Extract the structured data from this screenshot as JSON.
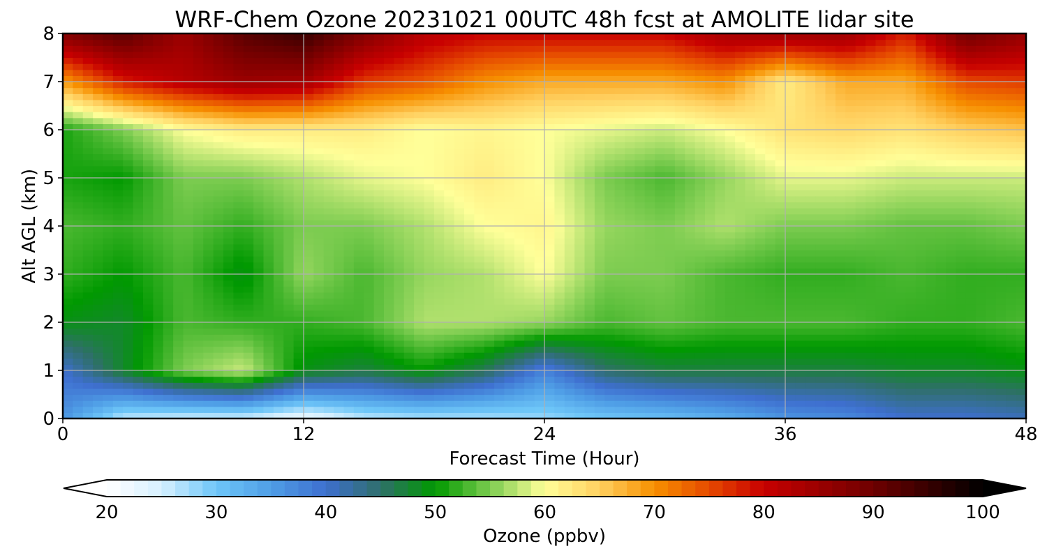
{
  "chart_data": {
    "type": "heatmap",
    "title": "WRF-Chem Ozone  20231021 00UTC 48h fcst at AMOLITE lidar site",
    "xlabel": "Forecast Time (Hour)",
    "ylabel": "Alt AGL (km)",
    "xlim": [
      0,
      48
    ],
    "ylim": [
      0,
      8
    ],
    "x_ticks": [
      0,
      12,
      24,
      36,
      48
    ],
    "y_ticks": [
      0,
      1,
      2,
      3,
      4,
      5,
      6,
      7,
      8
    ],
    "grid": true,
    "colorbar": {
      "label": "Ozone  (ppbv)",
      "range": [
        20,
        100
      ],
      "ticks": [
        20,
        30,
        40,
        50,
        60,
        70,
        80,
        90,
        100
      ],
      "extend": "both",
      "orientation": "horizontal",
      "stops": [
        {
          "v": 20,
          "c": "#ffffff"
        },
        {
          "v": 25,
          "c": "#d6f0ff"
        },
        {
          "v": 30,
          "c": "#6ec6f8"
        },
        {
          "v": 35,
          "c": "#4f9ee6"
        },
        {
          "v": 40,
          "c": "#3e6fcf"
        },
        {
          "v": 45,
          "c": "#2f6f6a"
        },
        {
          "v": 50,
          "c": "#009900"
        },
        {
          "v": 55,
          "c": "#7ccc50"
        },
        {
          "v": 60,
          "c": "#ffff99"
        },
        {
          "v": 65,
          "c": "#ffd060"
        },
        {
          "v": 70,
          "c": "#f79000"
        },
        {
          "v": 75,
          "c": "#e64a00"
        },
        {
          "v": 80,
          "c": "#c80000"
        },
        {
          "v": 90,
          "c": "#6e0000"
        },
        {
          "v": 100,
          "c": "#000000"
        }
      ]
    },
    "series": [
      {
        "x": 0,
        "values": [
          36,
          40,
          49,
          52,
          53,
          51,
          51,
          69,
          88
        ]
      },
      {
        "x": 3,
        "values": [
          26,
          48,
          48,
          50,
          52,
          50,
          55,
          78,
          92
        ]
      },
      {
        "x": 6,
        "values": [
          25,
          55,
          53,
          53,
          54,
          55,
          60,
          82,
          85
        ]
      },
      {
        "x": 9,
        "values": [
          25,
          58,
          52,
          49,
          52,
          55,
          62,
          85,
          92
        ]
      },
      {
        "x": 12,
        "values": [
          22,
          49,
          52,
          56,
          55,
          57,
          62,
          84,
          95
        ]
      },
      {
        "x": 15,
        "values": [
          26,
          47,
          53,
          53,
          55,
          59,
          62,
          76,
          88
        ]
      },
      {
        "x": 18,
        "values": [
          27,
          50,
          57,
          56,
          57,
          60,
          60,
          74,
          82
        ]
      },
      {
        "x": 21,
        "values": [
          27,
          46,
          57,
          57,
          60,
          62,
          61,
          70,
          80
        ]
      },
      {
        "x": 24,
        "values": [
          28,
          38,
          56,
          60,
          61,
          60,
          60,
          68,
          80
        ]
      },
      {
        "x": 27,
        "values": [
          30,
          45,
          53,
          55,
          56,
          55,
          59,
          68,
          80
        ]
      },
      {
        "x": 30,
        "values": [
          31,
          47,
          54,
          55,
          55,
          53,
          58,
          68,
          80
        ]
      },
      {
        "x": 33,
        "values": [
          33,
          47,
          53,
          53,
          57,
          56,
          60,
          70,
          84
        ]
      },
      {
        "x": 36,
        "values": [
          36,
          47,
          53,
          52,
          55,
          59,
          63,
          62,
          85
        ]
      },
      {
        "x": 39,
        "values": [
          37,
          47,
          53,
          52,
          55,
          59,
          64,
          68,
          85
        ]
      },
      {
        "x": 42,
        "values": [
          40,
          48,
          52,
          53,
          54,
          58,
          63,
          68,
          78
        ]
      },
      {
        "x": 45,
        "values": [
          40,
          48,
          52,
          52,
          54,
          58,
          65,
          75,
          90
        ]
      },
      {
        "x": 48,
        "values": [
          41,
          49,
          53,
          52,
          55,
          58,
          66,
          76,
          86
        ]
      }
    ],
    "y_levels": [
      0,
      1,
      2,
      3,
      4,
      5,
      6,
      7,
      8
    ]
  }
}
